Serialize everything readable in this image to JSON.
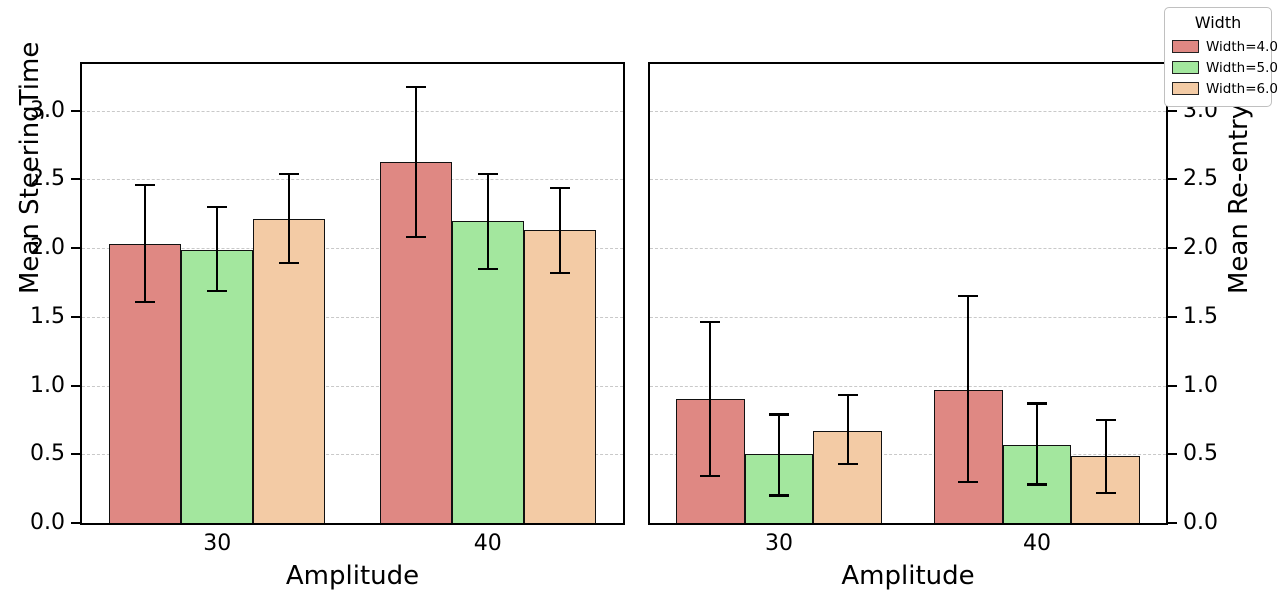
{
  "figure": {
    "background": "#ffffff"
  },
  "legend": {
    "title": "Width",
    "entries": [
      {
        "label": "Width=4.0",
        "color": "#df8883"
      },
      {
        "label": "Width=5.0",
        "color": "#a3e79e"
      },
      {
        "label": "Width=6.0",
        "color": "#f3cba5"
      }
    ]
  },
  "chart_data": {
    "type": "bar",
    "categories": [
      "30",
      "40"
    ],
    "xlabel": "Amplitude",
    "grid": "horizontal dashed",
    "legend_position": "upper right outside",
    "bar_edge_color": "#111111",
    "error_bar_color": "#000000",
    "gridline_color": "#c9c9c9",
    "panels": [
      {
        "ylabel": "Mean SteeringTime",
        "ylabel_side": "left",
        "ylim": [
          0,
          3.34
        ],
        "yticks": [
          0.0,
          0.5,
          1.0,
          1.5,
          2.0,
          2.5,
          3.0
        ],
        "series": [
          {
            "name": "Width=4.0",
            "color": "#df8883",
            "values": [
              2.03,
              2.63
            ],
            "err_low": [
              1.61,
              2.08
            ],
            "err_high": [
              2.46,
              3.17
            ]
          },
          {
            "name": "Width=5.0",
            "color": "#a3e79e",
            "values": [
              1.99,
              2.2
            ],
            "err_low": [
              1.69,
              1.85
            ],
            "err_high": [
              2.3,
              2.54
            ]
          },
          {
            "name": "Width=6.0",
            "color": "#f3cba5",
            "values": [
              2.21,
              2.13
            ],
            "err_low": [
              1.89,
              1.82
            ],
            "err_high": [
              2.54,
              2.44
            ]
          }
        ]
      },
      {
        "ylabel": "Mean Re-entry Count",
        "ylabel_side": "right",
        "ylim": [
          0,
          3.34
        ],
        "yticks": [
          0.0,
          0.5,
          1.0,
          1.5,
          2.0,
          2.5,
          3.0
        ],
        "series": [
          {
            "name": "Width=4.0",
            "color": "#df8883",
            "values": [
              0.9,
              0.97
            ],
            "err_low": [
              0.34,
              0.3
            ],
            "err_high": [
              1.46,
              1.65
            ]
          },
          {
            "name": "Width=5.0",
            "color": "#a3e79e",
            "values": [
              0.5,
              0.57
            ],
            "err_low": [
              0.2,
              0.28
            ],
            "err_high": [
              0.79,
              0.87
            ]
          },
          {
            "name": "Width=6.0",
            "color": "#f3cba5",
            "values": [
              0.67,
              0.49
            ],
            "err_low": [
              0.43,
              0.22
            ],
            "err_high": [
              0.93,
              0.75
            ]
          }
        ]
      }
    ]
  }
}
